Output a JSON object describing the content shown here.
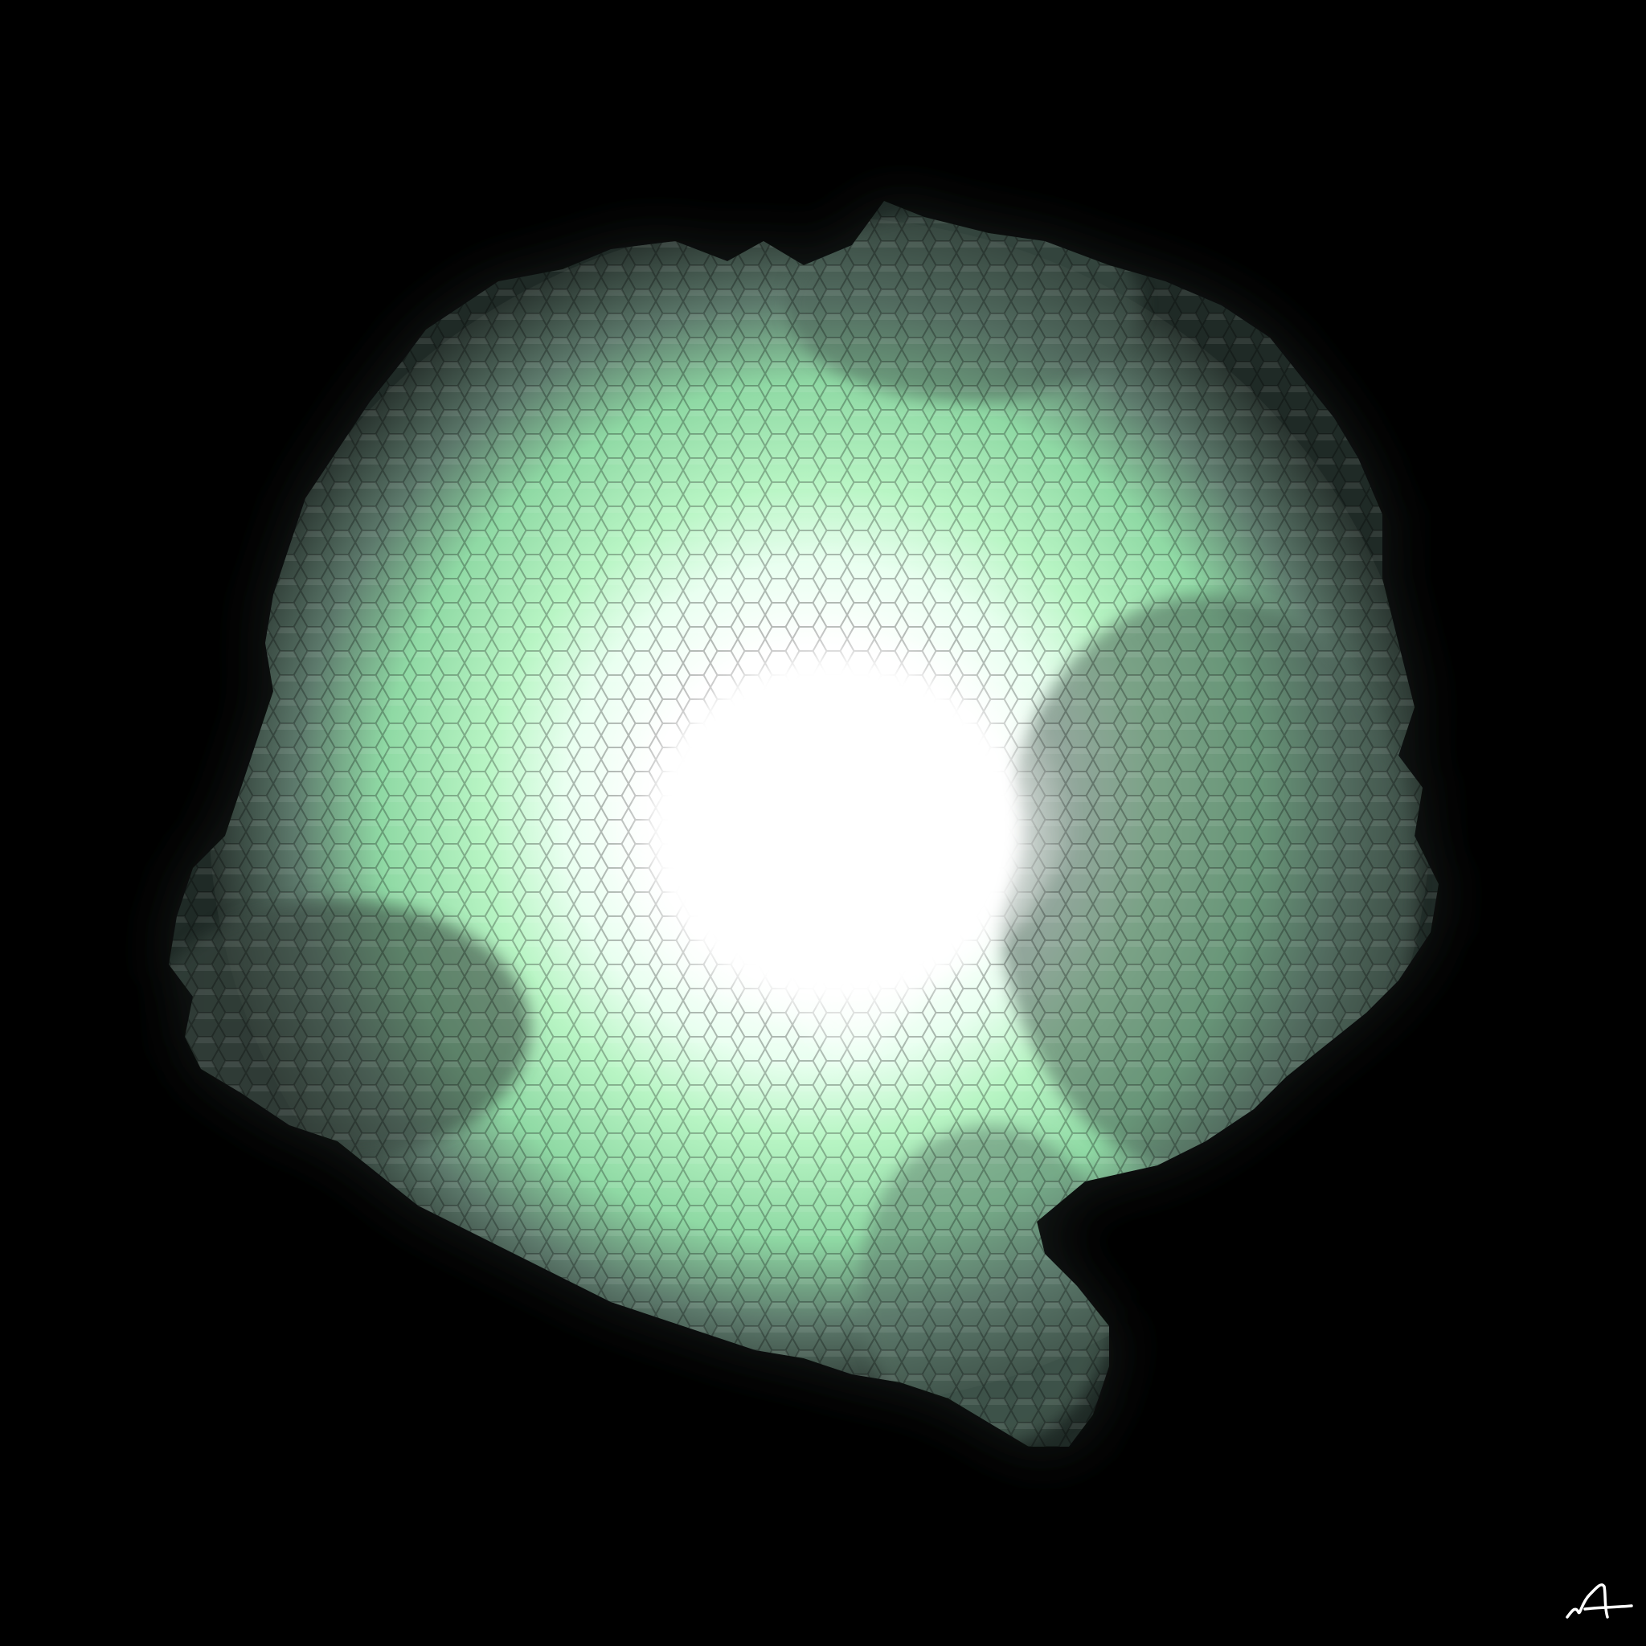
{
  "canvas": {
    "background_color": "#000000"
  },
  "artwork": {
    "subject": "glowing-hexagonal-particle-blob",
    "core_color": "#ffffff",
    "glow_color": "#b8f5c4",
    "mid_color": "#8fd9a4",
    "edge_color": "#4a5e55",
    "shadow_color": "#1f2a26"
  },
  "signature": {
    "text": "A",
    "color": "#ffffff"
  }
}
